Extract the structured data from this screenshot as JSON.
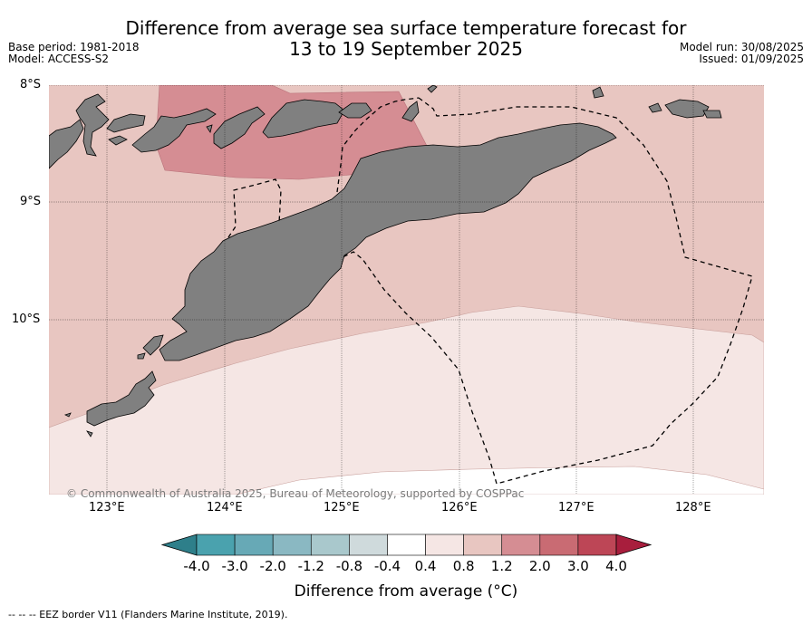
{
  "title": {
    "line1": "Difference from average sea surface temperature forecast for",
    "line2": "13 to 19 September 2025"
  },
  "meta_left": {
    "base_period": "Base period: 1981-2018",
    "model": "Model: ACCESS-S2"
  },
  "meta_right": {
    "model_run": "Model run: 30/08/2025",
    "issued": "Issued: 01/09/2025"
  },
  "lat_labels": [
    "8°S",
    "9°S",
    "10°S"
  ],
  "lon_labels": [
    "123°E",
    "124°E",
    "125°E",
    "126°E",
    "127°E",
    "128°E"
  ],
  "copyright": "© Commonwealth of Australia 2025, Bureau of Meteorology, supported by COSPPac",
  "colorbar": {
    "ticks": [
      "-4.0",
      "-3.0",
      "-2.0",
      "-1.2",
      "-0.8",
      "-0.4",
      "0.4",
      "0.8",
      "1.2",
      "2.0",
      "3.0",
      "4.0"
    ],
    "colors": [
      "#2e7f8a",
      "#4aa2ae",
      "#67a9b6",
      "#8ab8c2",
      "#a9c8cc",
      "#cfdadc",
      "#ffffff",
      "#f5e6e4",
      "#e8c6c1",
      "#d58d93",
      "#c96b73",
      "#bd4656",
      "#a81e3d"
    ],
    "label": "Difference from average (°C)"
  },
  "footer": "--  --  -- EEZ border V11 (Flanders Marine Institute, 2019).",
  "map_colors": {
    "land": "#808080",
    "anomaly_0_4_to_0_8": "#f5e6e4",
    "anomaly_0_8_to_1_2": "#e8c6c1",
    "anomaly_1_2_to_2_0": "#d58d93",
    "below_0_4": "#ffffff"
  }
}
